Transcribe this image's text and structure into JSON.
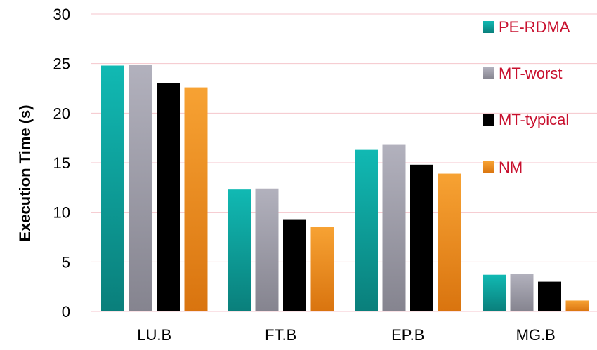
{
  "chart_data": {
    "type": "bar",
    "title": "",
    "xlabel": "",
    "ylabel": "Execution Time (s)",
    "ylim": [
      0,
      30
    ],
    "yticks": [
      0,
      5,
      10,
      15,
      20,
      25,
      30
    ],
    "grid": true,
    "legend_position": "right",
    "categories": [
      "LU.B",
      "FT.B",
      "EP.B",
      "MG.B"
    ],
    "series": [
      {
        "name": "PE-RDMA",
        "values": [
          24.8,
          12.3,
          16.3,
          3.7
        ],
        "color": "#0f9e9a",
        "color_light": "#11b9b3",
        "color_dark": "#0a7f7b"
      },
      {
        "name": "MT-worst",
        "values": [
          24.9,
          12.4,
          16.8,
          3.8
        ],
        "color": "#9a99a6",
        "color_light": "#b2b1bd",
        "color_dark": "#85848f"
      },
      {
        "name": "MT-typical",
        "values": [
          23.0,
          9.3,
          14.8,
          3.0
        ],
        "color": "#000000",
        "color_light": "#000000",
        "color_dark": "#000000"
      },
      {
        "name": "NM",
        "values": [
          22.6,
          8.5,
          13.9,
          1.1
        ],
        "color": "#f28c1a",
        "color_light": "#f7a233",
        "color_dark": "#d9740f"
      }
    ],
    "legend_text_color": "#c8102e",
    "grid_color": "#f4c6cc"
  }
}
